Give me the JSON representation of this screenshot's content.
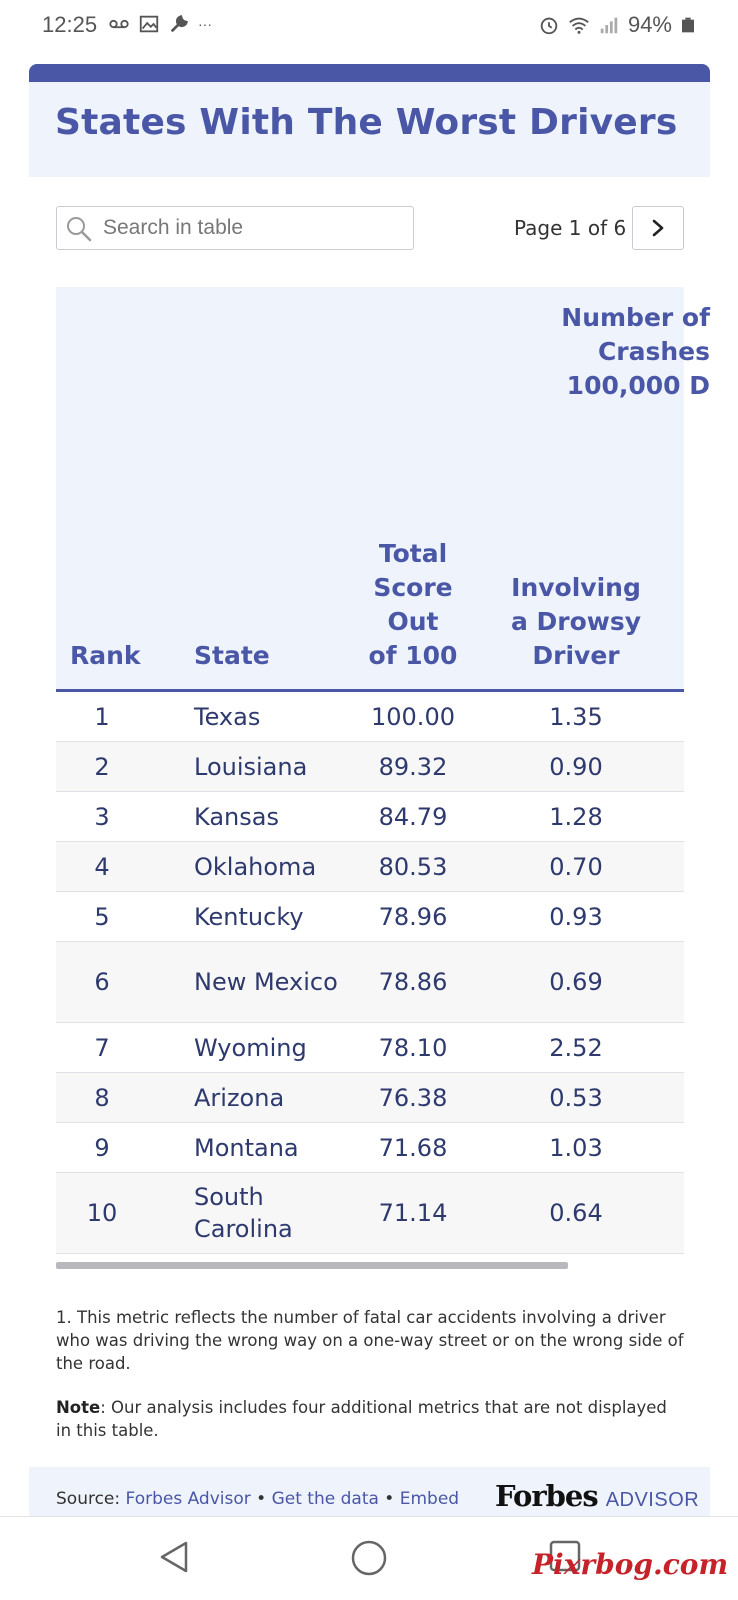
{
  "status_bar": {
    "time": "12:25",
    "battery": "94%",
    "icons_left": [
      "voicemail-icon",
      "image-icon",
      "wrench-icon",
      "more-icon"
    ],
    "icons_right": [
      "alarm-icon",
      "wifi-icon",
      "signal-icon",
      "battery-icon"
    ],
    "more": "···"
  },
  "header": {
    "title": "States With The Worst Drivers"
  },
  "search": {
    "placeholder": "Search in table",
    "value": ""
  },
  "pagination": {
    "label": "Page 1 of 6"
  },
  "table": {
    "columns": {
      "rank": "Rank",
      "state": "State",
      "score": "Total\nScore\nOut\nof 100",
      "drowsy": "Involving\na Drowsy\nDriver",
      "group": "Number of\nCrashes\n100,000 D"
    },
    "rows": [
      {
        "rank": "1",
        "state": "Texas",
        "score": "100.00",
        "drowsy": "1.35"
      },
      {
        "rank": "2",
        "state": "Louisiana",
        "score": "89.32",
        "drowsy": "0.90"
      },
      {
        "rank": "3",
        "state": "Kansas",
        "score": "84.79",
        "drowsy": "1.28"
      },
      {
        "rank": "4",
        "state": "Oklahoma",
        "score": "80.53",
        "drowsy": "0.70"
      },
      {
        "rank": "5",
        "state": "Kentucky",
        "score": "78.96",
        "drowsy": "0.93"
      },
      {
        "rank": "6",
        "state": "New Mexico",
        "score": "78.86",
        "drowsy": "0.69"
      },
      {
        "rank": "7",
        "state": "Wyoming",
        "score": "78.10",
        "drowsy": "2.52"
      },
      {
        "rank": "8",
        "state": "Arizona",
        "score": "76.38",
        "drowsy": "0.53"
      },
      {
        "rank": "9",
        "state": "Montana",
        "score": "71.68",
        "drowsy": "1.03"
      },
      {
        "rank": "10",
        "state": "South Carolina",
        "score": "71.14",
        "drowsy": "0.64"
      }
    ]
  },
  "footnotes": {
    "note1": "1. This metric reflects the number of fatal car accidents involving a driver who was driving the wrong way on a one-way street or on the wrong side of the road.",
    "note_label": "Note",
    "note_text": ": Our analysis includes four additional metrics that are not displayed in this table."
  },
  "source": {
    "prefix": "Source: ",
    "link1": "Forbes Advisor",
    "sep": " • ",
    "link2": "Get the data",
    "link3": "Embed",
    "brand_main": "Forbes",
    "brand_sub": "ADVISOR"
  },
  "watermark": "Pixrbog.com",
  "colors": {
    "accent": "#4957a6",
    "header_bg": "#eff3fb",
    "text": "#2e3a6e",
    "watermark": "#c6222a"
  }
}
